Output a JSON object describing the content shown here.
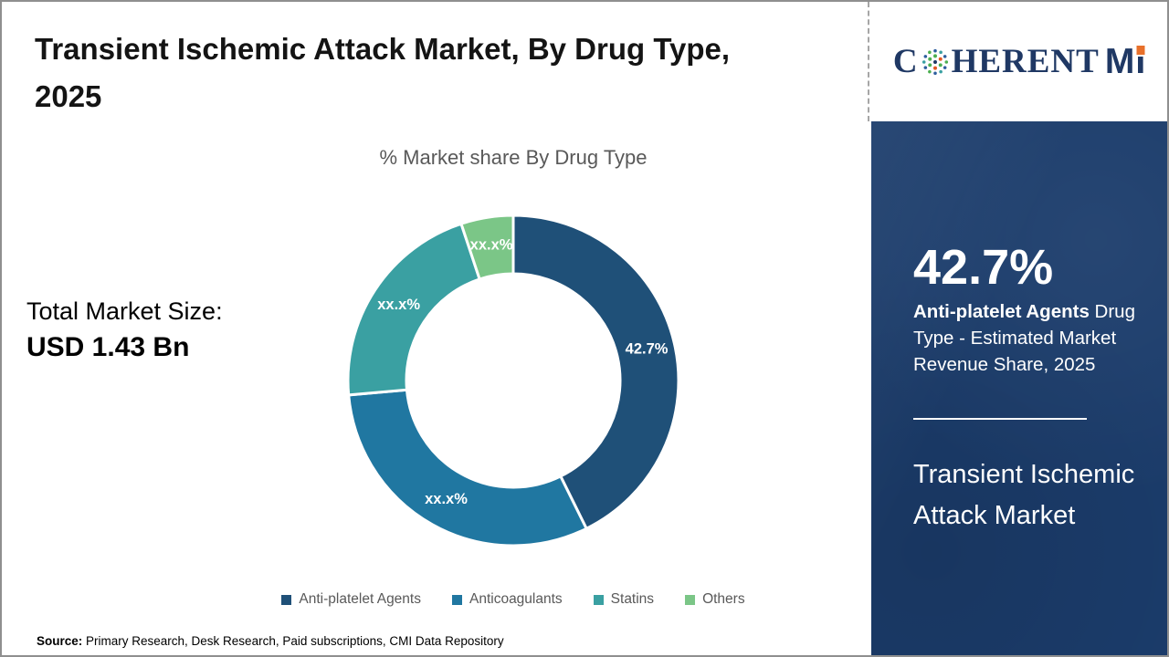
{
  "page": {
    "title_lines": [
      "Transient Ischemic Attack Market, By Drug Type,",
      "2025"
    ],
    "subtitle": "% Market share By Drug Type",
    "total_label": "Total Market Size:",
    "total_value": "USD 1.43 Bn",
    "source_prefix": "Source:",
    "source_text": " Primary Research, Desk Research, Paid subscriptions, CMI Data Repository"
  },
  "logo": {
    "part1": "C",
    "part2": "HERENT",
    "part3": "M",
    "part4": "I",
    "navy": "#1F3864",
    "orange": "#E8702A"
  },
  "sidebar": {
    "bg": "#1B3C6B",
    "stat_value": "42.7%",
    "stat_highlight": "Anti-platelet Agents",
    "stat_rest": " Drug Type - Estimated Market Revenue Share, 2025",
    "footer_title": "Transient Ischemic Attack Market"
  },
  "chart_data": {
    "type": "pie",
    "variant": "donut",
    "title": "% Market share By Drug Type",
    "start_angle_deg": 0,
    "direction": "clockwise",
    "outer_radius": 181,
    "inner_radius": 117,
    "label_radius": 150,
    "legend_position": "bottom",
    "slices": [
      {
        "name": "Anti-platelet Agents",
        "value": 42.7,
        "label": "42.7%",
        "color": "#1F5078"
      },
      {
        "name": "Anticoagulants",
        "value": 30.9,
        "label": "xx.x%",
        "color": "#2077A1"
      },
      {
        "name": "Statins",
        "value": 21.3,
        "label": "xx.x%",
        "color": "#3AA0A2"
      },
      {
        "name": "Others",
        "value": 5.1,
        "label": "xx.x%",
        "color": "#7BC687"
      }
    ]
  }
}
